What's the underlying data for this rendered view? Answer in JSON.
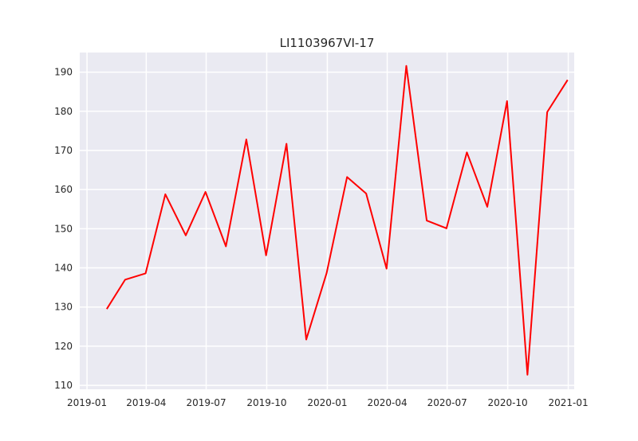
{
  "chart_data": {
    "type": "line",
    "title": "LI1103967VI-17",
    "xlabel": "",
    "ylabel": "",
    "x_axis_type": "date",
    "xlim": [
      "2018-12-21",
      "2021-01-10"
    ],
    "ylim": [
      109,
      195
    ],
    "x_ticks": [
      "2019-01",
      "2019-04",
      "2019-07",
      "2019-10",
      "2020-01",
      "2020-04",
      "2020-07",
      "2020-10",
      "2021-01"
    ],
    "y_ticks": [
      110,
      120,
      130,
      140,
      150,
      160,
      170,
      180,
      190
    ],
    "grid": true,
    "legend": false,
    "colors": {
      "line": "#ff0000",
      "plot_background": "#eaeaf2",
      "grid": "#ffffff",
      "text": "#262626"
    },
    "series": [
      {
        "x": [
          "2019-01-31",
          "2019-02-28",
          "2019-03-31",
          "2019-04-30",
          "2019-05-31",
          "2019-06-30",
          "2019-07-31",
          "2019-08-31",
          "2019-09-30",
          "2019-10-31",
          "2019-11-30",
          "2019-12-31",
          "2020-01-31",
          "2020-02-29",
          "2020-03-31",
          "2020-04-30",
          "2020-05-31",
          "2020-06-30",
          "2020-07-31",
          "2020-08-31",
          "2020-09-30",
          "2020-10-31",
          "2020-11-30",
          "2020-12-31"
        ],
        "values": [
          129.5,
          137.0,
          138.6,
          158.8,
          148.3,
          159.4,
          145.5,
          172.8,
          143.2,
          171.7,
          121.7,
          138.7,
          163.2,
          159.0,
          139.8,
          191.6,
          152.1,
          150.1,
          169.5,
          155.6,
          182.6,
          112.7,
          179.8,
          188.0
        ]
      }
    ]
  }
}
